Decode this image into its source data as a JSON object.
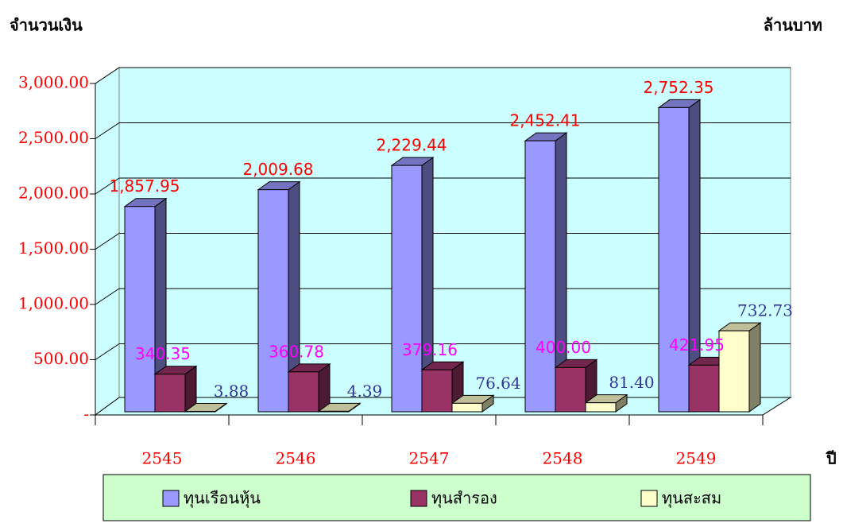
{
  "chart_data": {
    "type": "bar3d",
    "y_label": "จำนวนเงิน",
    "unit_label": "ล้านบาท",
    "x_label": "ปี",
    "categories": [
      "2545",
      "2546",
      "2547",
      "2548",
      "2549"
    ],
    "series": [
      {
        "name": "ทุนเรือนหุ้น",
        "color": "#9999ff",
        "label_color": "#ff0000",
        "values": [
          1857.95,
          2009.68,
          2229.44,
          2452.41,
          2752.35
        ],
        "value_labels": [
          "1,857.95",
          "2,009.68",
          "2,229.44",
          "2,452.41",
          "2,752.35"
        ]
      },
      {
        "name": "ทุนสำรอง",
        "color": "#993366",
        "label_color": "#ff00ff",
        "values": [
          340.35,
          360.78,
          379.16,
          400,
          421.95
        ],
        "value_labels": [
          "340.35",
          "360.78",
          "379.16",
          "400.00",
          "421.95"
        ]
      },
      {
        "name": "ทุนสะสม",
        "color": "#ffffcc",
        "label_color": "#333399",
        "values": [
          3.88,
          4.39,
          76.64,
          81.4,
          732.73
        ],
        "value_labels": [
          "3.88",
          "4.39",
          "76.64",
          "81.40",
          "732.73"
        ]
      }
    ],
    "ylim": [
      0,
      3000
    ],
    "yticks": [
      {
        "value": 0,
        "label": "-"
      },
      {
        "value": 500,
        "label": "500.00"
      },
      {
        "value": 1000,
        "label": "1,000.00"
      },
      {
        "value": 1500,
        "label": "1,500.00"
      },
      {
        "value": 2000,
        "label": "2,000.00"
      },
      {
        "value": 2500,
        "label": "2,500.00"
      },
      {
        "value": 3000,
        "label": "3,000.00"
      }
    ],
    "grid": true
  }
}
